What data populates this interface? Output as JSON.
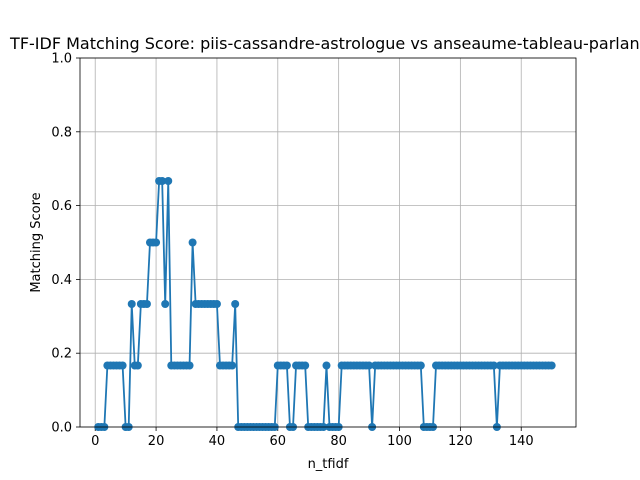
{
  "chart_data": {
    "type": "line",
    "title": "TF-IDF Matching Score: piis-cassandre-astrologue vs anseaume-tableau-parlant",
    "xlabel": "n_tfidf",
    "ylabel": "Matching Score",
    "xlim": [
      -5,
      158
    ],
    "ylim": [
      0,
      1
    ],
    "xticks": [
      0,
      20,
      40,
      60,
      80,
      100,
      120,
      140
    ],
    "yticks": [
      0.0,
      0.2,
      0.4,
      0.6,
      0.8,
      1.0
    ],
    "xtick_labels": [
      "0",
      "20",
      "40",
      "60",
      "80",
      "100",
      "120",
      "140"
    ],
    "ytick_labels": [
      "0.0",
      "0.2",
      "0.4",
      "0.6",
      "0.8",
      "1.0"
    ],
    "grid": true,
    "series": [
      {
        "color": "#1f77b4",
        "marker": "circle",
        "x": [
          1,
          2,
          3,
          4,
          5,
          6,
          7,
          8,
          9,
          10,
          11,
          12,
          13,
          14,
          15,
          16,
          17,
          18,
          19,
          20,
          21,
          22,
          23,
          24,
          25,
          26,
          27,
          28,
          29,
          30,
          31,
          32,
          33,
          34,
          35,
          36,
          37,
          38,
          39,
          40,
          41,
          42,
          43,
          44,
          45,
          46,
          47,
          48,
          49,
          50,
          51,
          52,
          53,
          54,
          55,
          56,
          57,
          58,
          59,
          60,
          61,
          62,
          63,
          64,
          65,
          66,
          67,
          68,
          69,
          70,
          71,
          72,
          73,
          74,
          75,
          76,
          77,
          78,
          79,
          80,
          81,
          82,
          83,
          84,
          85,
          86,
          87,
          88,
          89,
          90,
          91,
          92,
          93,
          94,
          95,
          96,
          97,
          98,
          99,
          100,
          101,
          102,
          103,
          104,
          105,
          106,
          107,
          108,
          109,
          110,
          111,
          112,
          113,
          114,
          115,
          116,
          117,
          118,
          119,
          120,
          121,
          122,
          123,
          124,
          125,
          126,
          127,
          128,
          129,
          130,
          131,
          132,
          133,
          134,
          135,
          136,
          137,
          138,
          139,
          140,
          141,
          142,
          143,
          144,
          145,
          146,
          147,
          148,
          149,
          150
        ],
        "y": [
          0,
          0,
          0,
          0.1667,
          0.1667,
          0.1667,
          0.1667,
          0.1667,
          0.1667,
          0,
          0,
          0.3333,
          0.1667,
          0.1667,
          0.3333,
          0.3333,
          0.3333,
          0.5,
          0.5,
          0.5,
          0.6667,
          0.6667,
          0.3333,
          0.6667,
          0.1667,
          0.1667,
          0.1667,
          0.1667,
          0.1667,
          0.1667,
          0.1667,
          0.5,
          0.3333,
          0.3333,
          0.3333,
          0.3333,
          0.3333,
          0.3333,
          0.3333,
          0.3333,
          0.1667,
          0.1667,
          0.1667,
          0.1667,
          0.1667,
          0.3333,
          0,
          0,
          0,
          0,
          0,
          0,
          0,
          0,
          0,
          0,
          0,
          0,
          0,
          0.1667,
          0.1667,
          0.1667,
          0.1667,
          0,
          0,
          0.1667,
          0.1667,
          0.1667,
          0.1667,
          0,
          0,
          0,
          0,
          0,
          0,
          0.1667,
          0,
          0,
          0,
          0,
          0.1667,
          0.1667,
          0.1667,
          0.1667,
          0.1667,
          0.1667,
          0.1667,
          0.1667,
          0.1667,
          0.1667,
          0,
          0.1667,
          0.1667,
          0.1667,
          0.1667,
          0.1667,
          0.1667,
          0.1667,
          0.1667,
          0.1667,
          0.1667,
          0.1667,
          0.1667,
          0.1667,
          0.1667,
          0.1667,
          0.1667,
          0,
          0,
          0,
          0,
          0.1667,
          0.1667,
          0.1667,
          0.1667,
          0.1667,
          0.1667,
          0.1667,
          0.1667,
          0.1667,
          0.1667,
          0.1667,
          0.1667,
          0.1667,
          0.1667,
          0.1667,
          0.1667,
          0.1667,
          0.1667,
          0.1667,
          0.1667,
          0,
          0.1667,
          0.1667,
          0.1667,
          0.1667,
          0.1667,
          0.1667,
          0.1667,
          0.1667,
          0.1667,
          0.1667,
          0.1667,
          0.1667,
          0.1667,
          0.1667,
          0.1667,
          0.1667,
          0.1667,
          0.1667
        ]
      }
    ]
  }
}
